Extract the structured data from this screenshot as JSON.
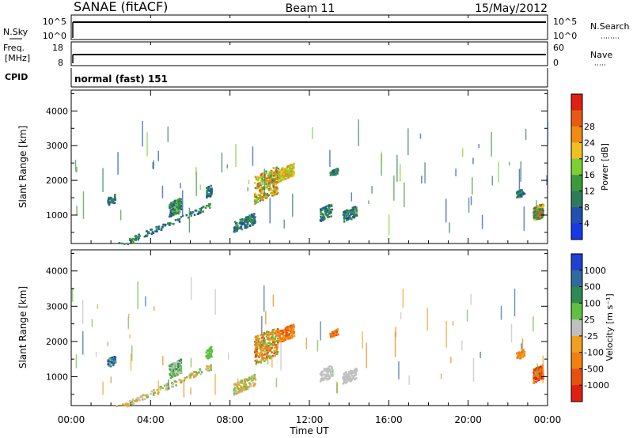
{
  "header": {
    "title": "SANAE (fitACF)",
    "beam": "Beam 11",
    "date": "15/May/2012"
  },
  "top_panels": {
    "nsky_label": "N.Sky",
    "nsky_ticks": [
      "10^5",
      "10^0"
    ],
    "nsearch_label": "N.Search",
    "nsearch_ticks": [
      "10^5",
      "10^0"
    ],
    "freq_label_1": "Freq.",
    "freq_label_2": "[MHz]",
    "freq_ticks": [
      "18",
      "8"
    ],
    "nave_label": "Nave",
    "nave_ticks": [
      "60",
      "0"
    ],
    "cpid_label": "CPID",
    "cpid_value": "normal (fast) 151"
  },
  "chart_data": [
    {
      "type": "heatmap",
      "name": "power",
      "ylabel": "Slant Range [km]",
      "ylim": [
        180,
        4600
      ],
      "yticks": [
        "1000",
        "2000",
        "3000",
        "4000"
      ],
      "colorbar_label": "Power [dB]",
      "colorbar_ticks": [
        "4",
        "8",
        "12",
        "16",
        "20",
        "24",
        "28"
      ],
      "colorbar_colors": [
        "#1838e8",
        "#2050b0",
        "#2e7a5c",
        "#3a9a3c",
        "#7ecf32",
        "#f2c01e",
        "#f08a10",
        "#e85a14",
        "#e02010"
      ]
    },
    {
      "type": "heatmap",
      "name": "velocity",
      "ylabel": "Slant Range [km]",
      "ylim": [
        180,
        4600
      ],
      "yticks": [
        "1000",
        "2000",
        "3000",
        "4000"
      ],
      "colorbar_label": "Velocity [m s⁻¹]",
      "colorbar_ticks": [
        "1000",
        "500",
        "100",
        "25",
        "-25",
        "-100",
        "-500",
        "-1000"
      ],
      "colorbar_colors": [
        "#2040d0",
        "#2e6aa0",
        "#2e8a50",
        "#60c040",
        "#c0c0c0",
        "#f0a020",
        "#f08010",
        "#e85010",
        "#e02010"
      ],
      "xlabel": "Time UT",
      "xticks": [
        "00:00",
        "04:00",
        "08:00",
        "12:00",
        "16:00",
        "20:00",
        "00:00"
      ]
    }
  ]
}
